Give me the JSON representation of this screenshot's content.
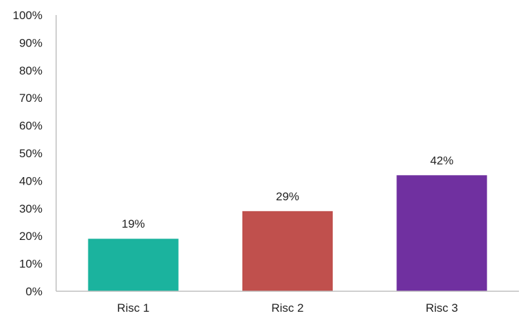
{
  "chart_data": {
    "type": "bar",
    "categories": [
      "Risc 1",
      "Risc 2",
      "Risc 3"
    ],
    "values": [
      19,
      29,
      42
    ],
    "data_labels": [
      "19%",
      "29%",
      "42%"
    ],
    "colors": [
      "#1bb39e",
      "#c0504d",
      "#7030a0"
    ],
    "ylim": [
      0,
      100
    ],
    "yticks": [
      0,
      10,
      20,
      30,
      40,
      50,
      60,
      70,
      80,
      90,
      100
    ],
    "ytick_labels": [
      "0%",
      "10%",
      "20%",
      "30%",
      "40%",
      "50%",
      "60%",
      "70%",
      "80%",
      "90%",
      "100%"
    ],
    "title": "",
    "xlabel": "",
    "ylabel": "",
    "grid": false,
    "legend": false,
    "axis_color": "#bfbfbf"
  }
}
